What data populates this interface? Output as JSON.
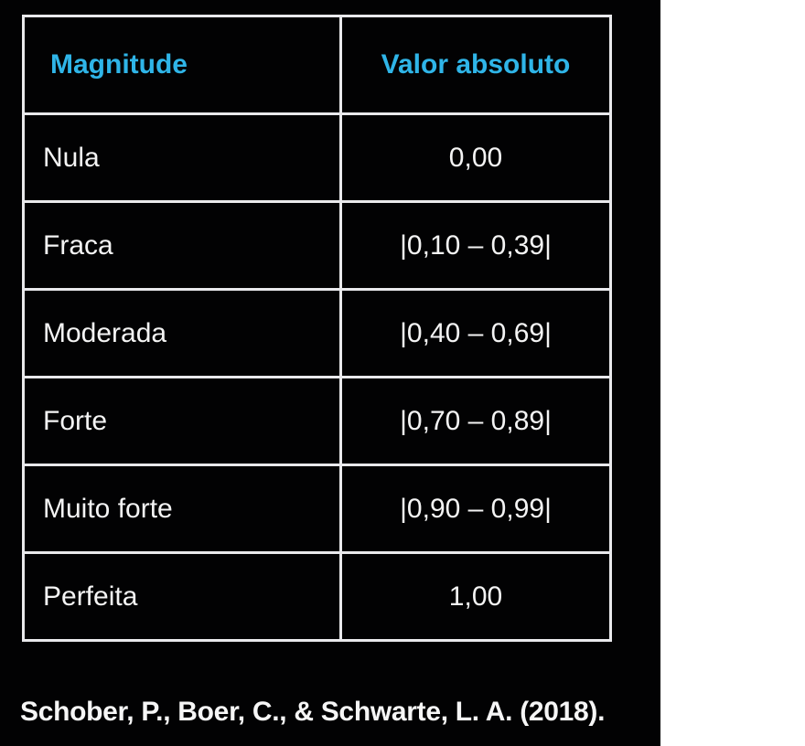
{
  "table": {
    "headers": [
      "Magnitude",
      "Valor absoluto"
    ],
    "rows": [
      [
        "Nula",
        "0,00"
      ],
      [
        "Fraca",
        "|0,10 – 0,39|"
      ],
      [
        "Moderada",
        "|0,40 – 0,69|"
      ],
      [
        "Forte",
        "|0,70 – 0,89|"
      ],
      [
        "Muito forte",
        "|0,90 – 0,99|"
      ],
      [
        "Perfeita",
        "1,00"
      ]
    ]
  },
  "citation": "Schober, P., Boer, C., & Schwarte, L. A. (2018).",
  "colors": {
    "background": "#020203",
    "header_text": "#2fb5e8",
    "body_text": "#f4f4f4",
    "grid_lines": "#e9e9ec"
  }
}
